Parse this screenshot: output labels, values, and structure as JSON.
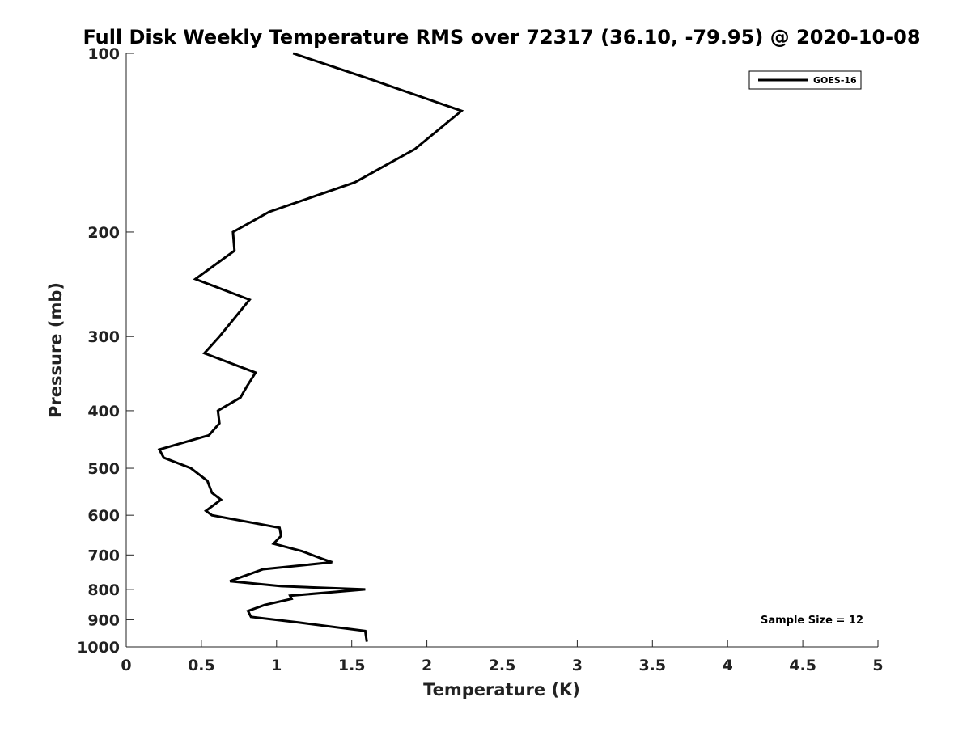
{
  "chart_data": {
    "type": "line",
    "title": "Full Disk Weekly Temperature RMS over 72317 (36.10, -79.95) @ 2020-10-08",
    "xlabel": "Temperature (K)",
    "ylabel": "Pressure (mb)",
    "xlim": [
      0,
      5
    ],
    "ylim": [
      1000,
      100
    ],
    "yscale": "log",
    "y_reversed": true,
    "xticks": [
      0,
      0.5,
      1,
      1.5,
      2,
      2.5,
      3,
      3.5,
      4,
      4.5,
      5
    ],
    "xtick_labels": [
      "0",
      "0.5",
      "1",
      "1.5",
      "2",
      "2.5",
      "3",
      "3.5",
      "4",
      "4.5",
      "5"
    ],
    "yticks": [
      100,
      200,
      300,
      400,
      500,
      600,
      700,
      800,
      900,
      1000
    ],
    "ytick_labels": [
      "100",
      "200",
      "300",
      "400",
      "500",
      "600",
      "700",
      "800",
      "900",
      "1000"
    ],
    "grid": false,
    "legend_position": "top-right",
    "annotation": "Sample Size = 12",
    "series": [
      {
        "name": "GOES-16",
        "color": "#000000",
        "x": [
          1.11,
          1.6,
          2.23,
          1.92,
          1.52,
          0.95,
          0.71,
          0.72,
          0.46,
          0.82,
          0.62,
          0.52,
          0.86,
          0.8,
          0.76,
          0.61,
          0.62,
          0.55,
          0.22,
          0.25,
          0.43,
          0.54,
          0.57,
          0.63,
          0.53,
          0.57,
          1.02,
          1.03,
          0.98,
          1.17,
          1.3,
          1.37,
          0.91,
          0.69,
          1.03,
          1.59,
          1.09,
          1.1,
          0.92,
          0.81,
          0.83,
          1.15,
          1.59,
          1.6
        ],
        "y": [
          100,
          110,
          125,
          145,
          165,
          185,
          200,
          215,
          240,
          260,
          300,
          320,
          345,
          365,
          380,
          400,
          420,
          440,
          465,
          480,
          500,
          525,
          550,
          565,
          590,
          600,
          630,
          650,
          670,
          690,
          710,
          720,
          740,
          775,
          790,
          800,
          820,
          830,
          850,
          870,
          890,
          910,
          940,
          980
        ]
      }
    ]
  }
}
